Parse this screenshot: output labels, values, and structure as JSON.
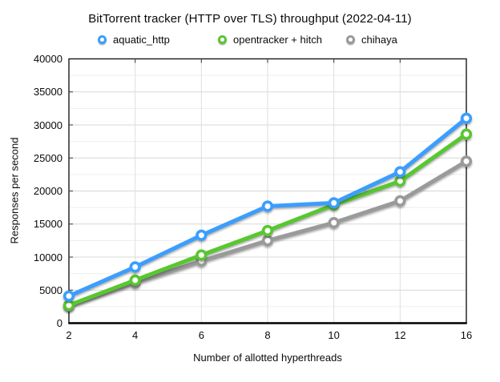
{
  "chart_data": {
    "type": "line",
    "title": "BitTorrent tracker (HTTP over TLS) throughput (2022-04-11)",
    "xlabel": "Number of allotted hyperthreads",
    "ylabel": "Responses per second",
    "categories": [
      2,
      4,
      6,
      8,
      10,
      12,
      16
    ],
    "series": [
      {
        "name": "aquatic_http",
        "color": "#3B9EFE",
        "values": [
          4100,
          8500,
          13300,
          17700,
          18200,
          22900,
          31000
        ]
      },
      {
        "name": "opentracker + hitch",
        "color": "#58C730",
        "values": [
          2700,
          6500,
          10300,
          14000,
          17900,
          21500,
          28600
        ]
      },
      {
        "name": "chihaya",
        "color": "#9A9A9A",
        "values": [
          2600,
          6100,
          9400,
          12500,
          15200,
          18500,
          24500
        ]
      }
    ],
    "ylim": [
      0,
      40000
    ],
    "y_major_step": 5000,
    "y_minor_step": 2500,
    "grid": true,
    "legend_position": "top",
    "marker": "open-circle"
  }
}
